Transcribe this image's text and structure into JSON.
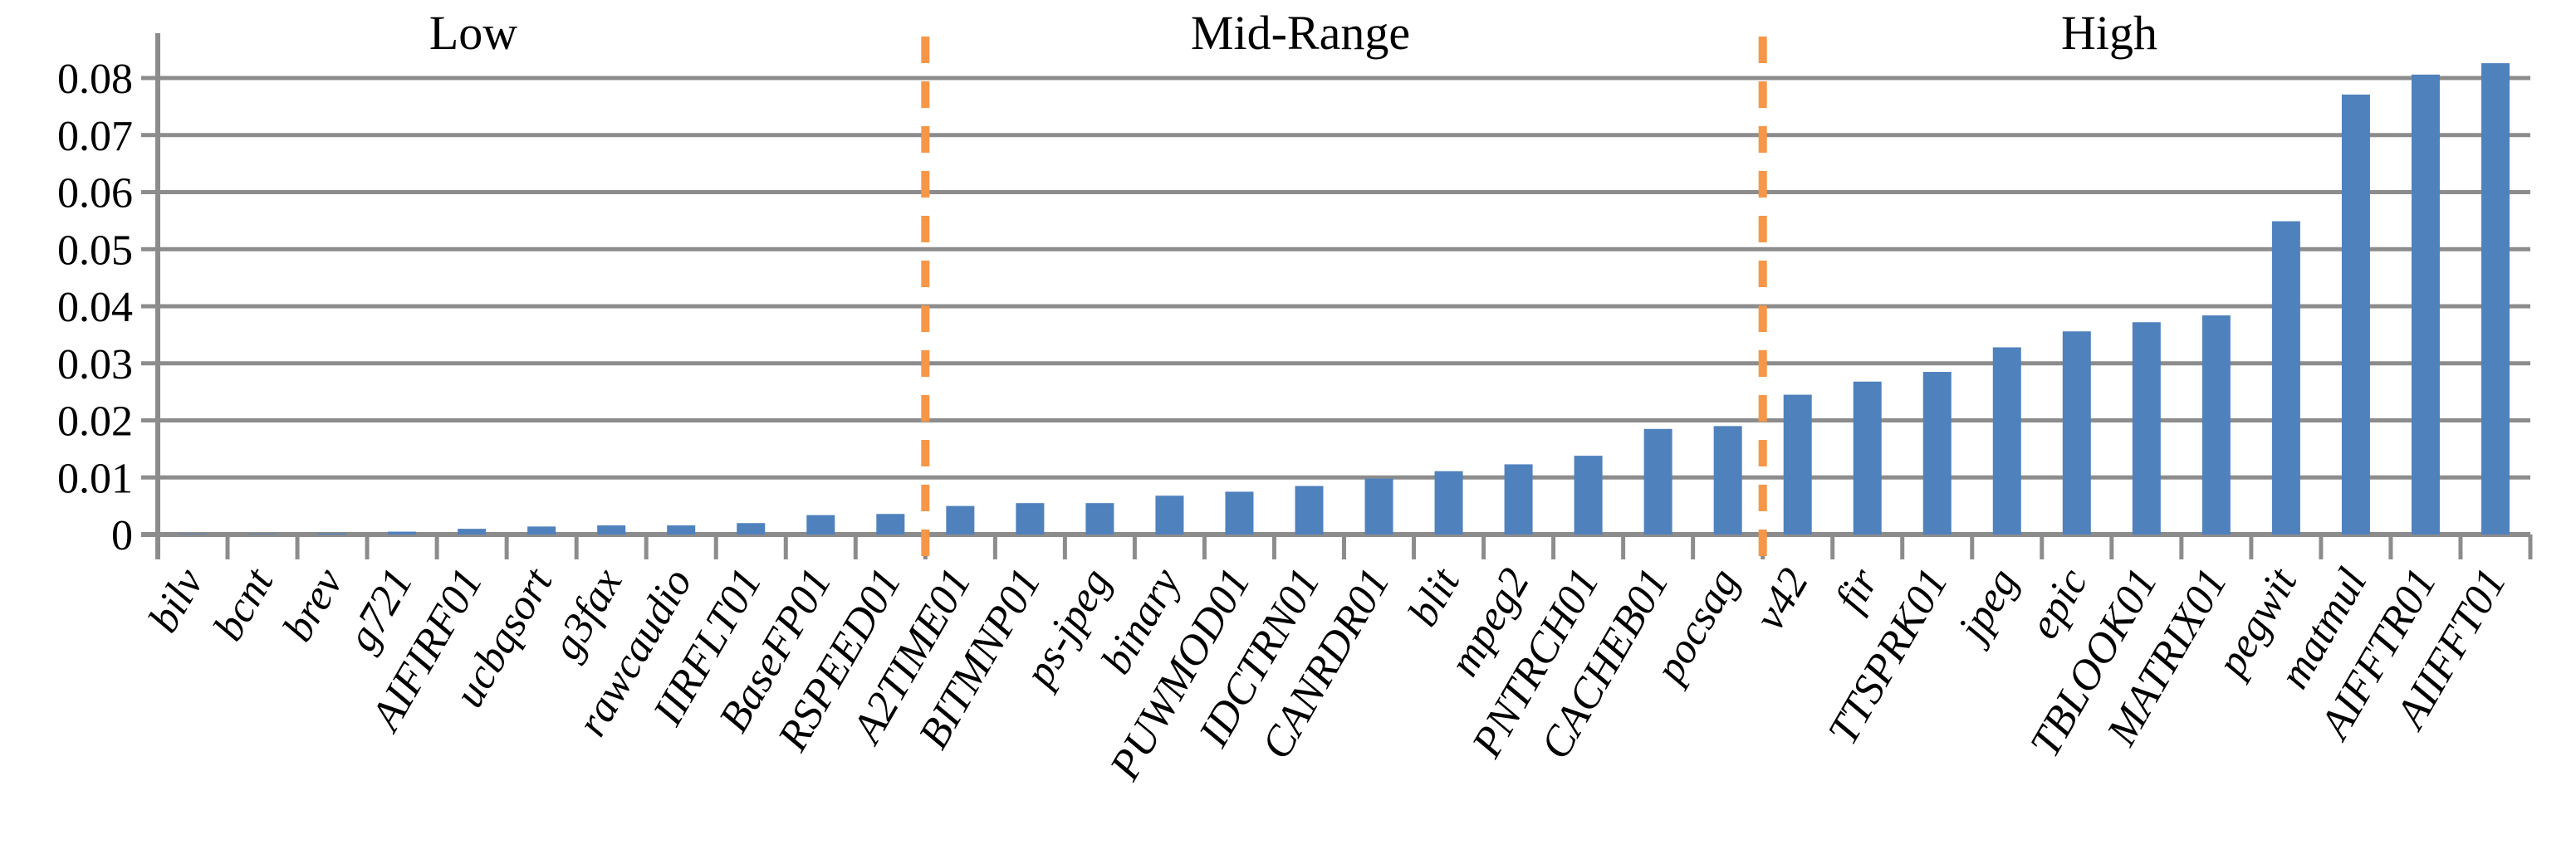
{
  "chart_data": {
    "type": "bar",
    "title": "",
    "xlabel": "",
    "ylabel": "",
    "categories": [
      "bilv",
      "bcnt",
      "brev",
      "g721",
      "AIFIRF01",
      "ucbqsort",
      "g3fax",
      "rawcaudio",
      "IIRFLT01",
      "BaseFP01",
      "RSPEED01",
      "A2TIME01",
      "BITMNP01",
      "ps-jpeg",
      "binary",
      "PUWMOD01",
      "IDCTRN01",
      "CANRDR01",
      "blit",
      "mpeg2",
      "PNTRCH01",
      "CACHEB01",
      "pocsag",
      "v42",
      "fir",
      "TTSPRK01",
      "jpeg",
      "epic",
      "TBLOOK01",
      "MATRIX01",
      "pegwit",
      "matmul",
      "AIFFTR01",
      "AIIFFT01"
    ],
    "values": [
      0.0001,
      0.0001,
      0.0002,
      0.0005,
      0.001,
      0.0014,
      0.0016,
      0.0016,
      0.002,
      0.0034,
      0.0036,
      0.005,
      0.0055,
      0.0055,
      0.0068,
      0.0075,
      0.0085,
      0.0098,
      0.0111,
      0.0123,
      0.0138,
      0.0185,
      0.019,
      0.0245,
      0.0268,
      0.0285,
      0.0328,
      0.0356,
      0.0372,
      0.0384,
      0.0549,
      0.0771,
      0.0806,
      0.0826
    ],
    "regions": [
      {
        "label": "Low",
        "start_index": 0,
        "end_index": 10
      },
      {
        "label": "Mid-Range",
        "start_index": 11,
        "end_index": 22
      },
      {
        "label": "High",
        "start_index": 23,
        "end_index": 33
      }
    ],
    "separators_after_index": [
      10,
      22
    ],
    "y_ticks": [
      "0",
      "0.01",
      "0.02",
      "0.03",
      "0.04",
      "0.05",
      "0.06",
      "0.07",
      "0.08"
    ],
    "ylim": [
      0,
      0.08
    ],
    "grid": true,
    "legend": "none",
    "bar_color": "#4F81BD",
    "separator_color": "#F79646",
    "grid_color": "#8C8C8C",
    "text_color": "#000000"
  }
}
